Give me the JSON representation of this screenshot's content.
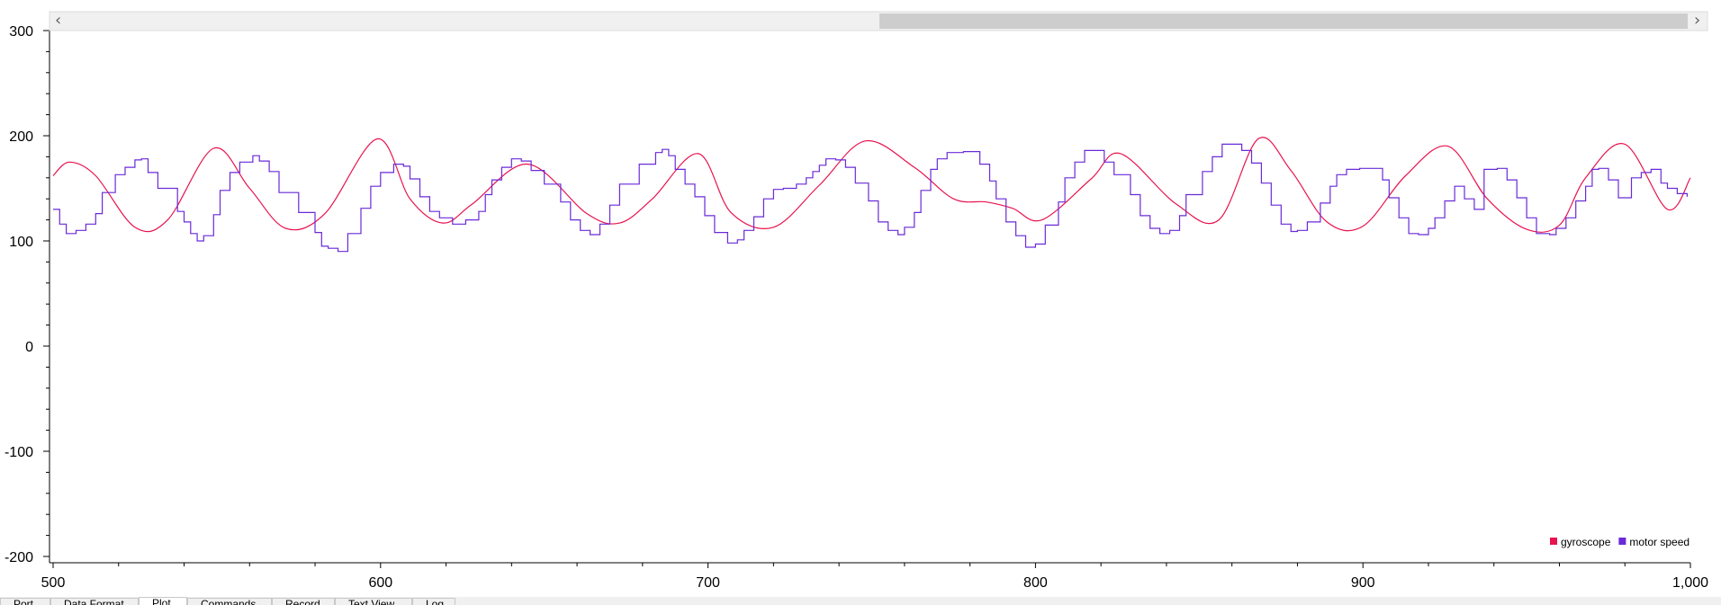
{
  "chart_data": {
    "type": "line",
    "title": "",
    "xlabel": "",
    "ylabel": "",
    "xlim": [
      500,
      1000
    ],
    "ylim": [
      -200,
      300
    ],
    "x_ticks": [
      "500",
      "600",
      "700",
      "800",
      "900",
      "1,000"
    ],
    "x_tick_values": [
      500,
      600,
      700,
      800,
      900,
      1000
    ],
    "y_ticks": [
      "300",
      "200",
      "100",
      "0",
      "-100",
      "-200"
    ],
    "y_tick_values": [
      300,
      200,
      100,
      0,
      -100,
      -200
    ],
    "grid": false,
    "legend_position": "bottom-right",
    "series": [
      {
        "name": "gyroscope",
        "color": "#e8134f",
        "style": "smooth",
        "x": [
          500,
          505,
          513,
          525,
          535,
          549,
          560,
          571,
          583,
          599,
          609,
          619,
          628,
          645,
          663,
          673,
          683,
          697,
          707,
          720,
          734,
          748,
          763,
          775,
          785,
          793,
          802,
          817,
          826,
          843,
          856,
          868,
          878,
          889,
          900,
          913,
          926,
          938,
          950,
          960,
          968,
          980,
          993,
          1000
        ],
        "y": [
          162,
          175,
          162,
          113,
          120,
          188,
          150,
          112,
          126,
          197,
          140,
          117,
          135,
          173,
          126,
          117,
          140,
          183,
          127,
          113,
          153,
          195,
          170,
          140,
          137,
          131,
          120,
          159,
          183,
          135,
          120,
          197,
          167,
          118,
          114,
          162,
          190,
          140,
          111,
          115,
          160,
          192,
          130,
          160
        ]
      },
      {
        "name": "motor speed",
        "color": "#6a2ad8",
        "style": "step",
        "x": [
          500,
          502,
          504,
          507,
          510,
          513,
          515,
          519,
          522,
          525,
          527,
          529,
          532,
          538,
          540,
          542,
          544,
          546,
          549,
          551,
          554,
          557,
          561,
          563,
          566,
          569,
          575,
          580,
          582,
          584,
          587,
          590,
          594,
          597,
          600,
          604,
          607,
          609,
          612,
          615,
          618,
          622,
          626,
          630,
          632,
          634,
          637,
          640,
          643,
          646,
          650,
          655,
          658,
          661,
          664,
          667,
          670,
          673,
          679,
          684,
          686,
          688,
          690,
          693,
          696,
          699,
          702,
          706,
          709,
          711,
          714,
          717,
          720,
          723,
          727,
          730,
          732,
          734,
          736,
          739,
          742,
          745,
          749,
          752,
          755,
          758,
          760,
          763,
          765,
          768,
          770,
          773,
          778,
          783,
          786,
          788,
          791,
          794,
          797,
          800,
          803,
          807,
          809,
          812,
          815,
          818,
          821,
          824,
          829,
          832,
          835,
          838,
          841,
          844,
          846,
          851,
          854,
          857,
          860,
          863,
          866,
          869,
          872,
          875,
          878,
          880,
          883,
          887,
          890,
          892,
          895,
          899,
          906,
          908,
          911,
          914,
          917,
          920,
          922,
          925,
          928,
          931,
          934,
          937,
          941,
          944,
          947,
          950,
          953,
          957,
          959,
          962,
          965,
          968,
          970,
          972,
          975,
          978,
          982,
          985,
          988,
          991,
          993,
          996,
          999
        ],
        "y": [
          130,
          116,
          107,
          110,
          116,
          126,
          146,
          163,
          170,
          177,
          178,
          165,
          150,
          128,
          118,
          107,
          100,
          105,
          125,
          148,
          165,
          175,
          181,
          176,
          166,
          146,
          127,
          108,
          95,
          93,
          90,
          107,
          131,
          152,
          165,
          173,
          171,
          159,
          142,
          128,
          122,
          116,
          120,
          128,
          144,
          158,
          170,
          178,
          176,
          167,
          154,
          137,
          120,
          110,
          106,
          116,
          134,
          154,
          173,
          184,
          187,
          181,
          168,
          154,
          142,
          124,
          108,
          98,
          101,
          110,
          123,
          140,
          149,
          150,
          154,
          160,
          166,
          172,
          178,
          177,
          170,
          155,
          138,
          118,
          110,
          106,
          113,
          127,
          148,
          168,
          178,
          184,
          185,
          173,
          157,
          140,
          118,
          105,
          94,
          97,
          115,
          137,
          160,
          175,
          186,
          186,
          175,
          163,
          144,
          124,
          112,
          107,
          110,
          124,
          144,
          166,
          180,
          192,
          192,
          186,
          174,
          155,
          134,
          116,
          109,
          110,
          118,
          136,
          152,
          163,
          168,
          169,
          158,
          141,
          122,
          107,
          106,
          112,
          122,
          138,
          152,
          140,
          130,
          168,
          169,
          158,
          141,
          122,
          107,
          106,
          112,
          122,
          138,
          152,
          168,
          169,
          158,
          141,
          160,
          165,
          168,
          155,
          150,
          145,
          142
        ]
      }
    ]
  },
  "scrollbar": {
    "left_arrow": "‹",
    "right_arrow": "›",
    "thumb_start": 0.502,
    "thumb_end": 1.0
  },
  "tabs": [
    {
      "label": "Port",
      "active": false
    },
    {
      "label": "Data Format",
      "active": false
    },
    {
      "label": "Plot",
      "active": true
    },
    {
      "label": "Commands",
      "active": false
    },
    {
      "label": "Record",
      "active": false
    },
    {
      "label": "Text View",
      "active": false
    },
    {
      "label": "Log",
      "active": false
    }
  ]
}
